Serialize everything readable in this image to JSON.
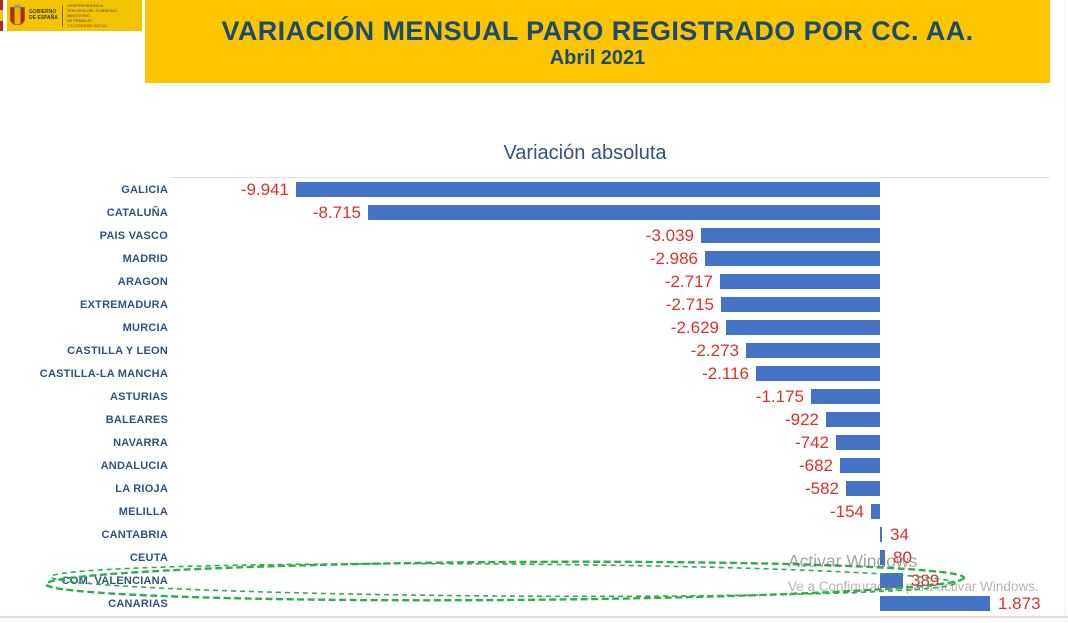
{
  "header": {
    "title": "VARIACIÓN MENSUAL PARO REGISTRADO POR CC. AA.",
    "subtitle": "Abril 2021",
    "logo": {
      "government": "GOBIERNO\nDE ESPAÑA",
      "office": "VICEPRESIDENCIA\nTERCERA DEL GOBIERNO\nMINISTERIO\nDE TRABAJO\nY ECONOMÍA SOCIAL"
    }
  },
  "chart_data": {
    "type": "bar",
    "orientation": "horizontal",
    "title": "Variación absoluta",
    "categories": [
      "GALICIA",
      "CATALUÑA",
      "PAIS VASCO",
      "MADRID",
      "ARAGON",
      "EXTREMADURA",
      "MURCIA",
      "CASTILLA Y LEON",
      "CASTILLA-LA MANCHA",
      "ASTURIAS",
      "BALEARES",
      "NAVARRA",
      "ANDALUCIA",
      "LA RIOJA",
      "MELILLA",
      "CANTABRIA",
      "CEUTA",
      "COM. VALENCIANA",
      "CANARIAS"
    ],
    "values": [
      -9941,
      -8715,
      -3039,
      -2986,
      -2717,
      -2715,
      -2629,
      -2273,
      -2116,
      -1175,
      -922,
      -742,
      -682,
      -582,
      -154,
      34,
      80,
      389,
      1873
    ],
    "value_labels": [
      "-9.941",
      "-8.715",
      "-3.039",
      "-2.986",
      "-2.717",
      "-2.715",
      "-2.629",
      "-2.273",
      "-2.116",
      "-1.175",
      "-922",
      "-742",
      "-682",
      "-582",
      "-154",
      "34",
      "80",
      "389",
      "1.873"
    ],
    "xlim": [
      -10000,
      2000
    ],
    "grid": false,
    "legend": "none",
    "bar_color": "#4472C4",
    "value_label_color": "#E0312A",
    "category_label_color": "#2D5382",
    "annotation": {
      "shape": "hand-drawn-ellipse",
      "target_category": "COM. VALENCIANA",
      "color": "#2EAE4E"
    }
  },
  "watermark": {
    "line1": "Activar Windows",
    "line2": "Ve a Configuración para activar Windows."
  }
}
